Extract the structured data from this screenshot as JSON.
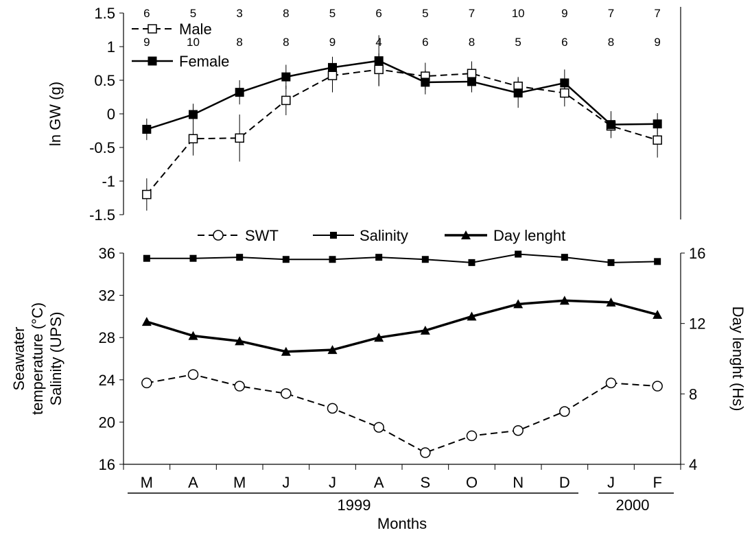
{
  "chart_data": [
    {
      "type": "line",
      "ylabel": "ln GW (g)",
      "ylim": [
        -1.5,
        1.5
      ],
      "yticks": [
        -1.5,
        -1,
        -0.5,
        0,
        0.5,
        1,
        1.5
      ],
      "ytick_labels": [
        "-1.5",
        "-1",
        "-0.5",
        "0",
        "0.5",
        "1",
        "1.5"
      ],
      "categories": [
        "M",
        "A",
        "M",
        "J",
        "J",
        "A",
        "S",
        "O",
        "N",
        "D",
        "J",
        "F"
      ],
      "legend_position": "top-left",
      "series": [
        {
          "name": "Male",
          "marker": "open-square",
          "line": "dashed",
          "values": [
            -1.2,
            -0.37,
            -0.36,
            0.2,
            0.57,
            0.66,
            0.56,
            0.6,
            0.41,
            0.31,
            -0.18,
            -0.39
          ],
          "errors": [
            0.24,
            0.25,
            0.35,
            0.22,
            0.25,
            0.24,
            0.2,
            0.18,
            0.14,
            0.2,
            0.18,
            0.26
          ],
          "n": [
            "6",
            "5",
            "3",
            "8",
            "5",
            "6",
            "5",
            "7",
            "10",
            "9",
            "7",
            "7"
          ]
        },
        {
          "name": "Female",
          "marker": "filled-square",
          "line": "solid",
          "values": [
            -0.23,
            -0.01,
            0.32,
            0.55,
            0.69,
            0.79,
            0.47,
            0.48,
            0.31,
            0.46,
            -0.16,
            -0.15
          ],
          "errors": [
            0.16,
            0.16,
            0.18,
            0.18,
            0.16,
            0.38,
            0.18,
            0.16,
            0.22,
            0.2,
            0.2,
            0.16
          ],
          "n": [
            "9",
            "10",
            "8",
            "8",
            "9",
            "4",
            "6",
            "8",
            "5",
            "6",
            "8",
            "9"
          ]
        }
      ]
    },
    {
      "type": "line",
      "ylabel_lines": [
        "Seawater",
        "temperature (°C)",
        "Salinity (UPS)"
      ],
      "y2label": "Day lenght (Hs)",
      "ylim": [
        16,
        36
      ],
      "yticks": [
        16,
        20,
        24,
        28,
        32,
        36
      ],
      "ytick_labels": [
        "16",
        "20",
        "24",
        "28",
        "32",
        "36"
      ],
      "y2lim": [
        4,
        16
      ],
      "y2ticks": [
        4,
        8,
        12,
        16
      ],
      "y2tick_labels": [
        "4",
        "8",
        "12",
        "16"
      ],
      "categories": [
        "M",
        "A",
        "M",
        "J",
        "J",
        "A",
        "S",
        "O",
        "N",
        "D",
        "J",
        "F"
      ],
      "xlabel": "Months",
      "year_groups": [
        {
          "label": "1999",
          "from": 0,
          "to": 9
        },
        {
          "label": "2000",
          "from": 10,
          "to": 11
        }
      ],
      "legend_position": "top",
      "series": [
        {
          "name": "SWT",
          "axis": "left",
          "marker": "open-circle",
          "line": "dashed",
          "values": [
            23.7,
            24.5,
            23.4,
            22.7,
            21.3,
            19.5,
            17.1,
            18.7,
            19.2,
            21.0,
            23.7,
            23.4
          ]
        },
        {
          "name": "Salinity",
          "axis": "left",
          "marker": "filled-square",
          "line": "solid",
          "values": [
            35.5,
            35.5,
            35.6,
            35.4,
            35.4,
            35.6,
            35.4,
            35.1,
            35.9,
            35.6,
            35.1,
            35.2
          ]
        },
        {
          "name": "Day lenght",
          "axis": "right",
          "marker": "filled-triangle",
          "line": "solid-thick",
          "values": [
            12.1,
            11.3,
            11.0,
            10.4,
            10.5,
            11.2,
            11.6,
            12.4,
            13.1,
            13.3,
            13.2,
            12.5
          ]
        }
      ]
    }
  ]
}
